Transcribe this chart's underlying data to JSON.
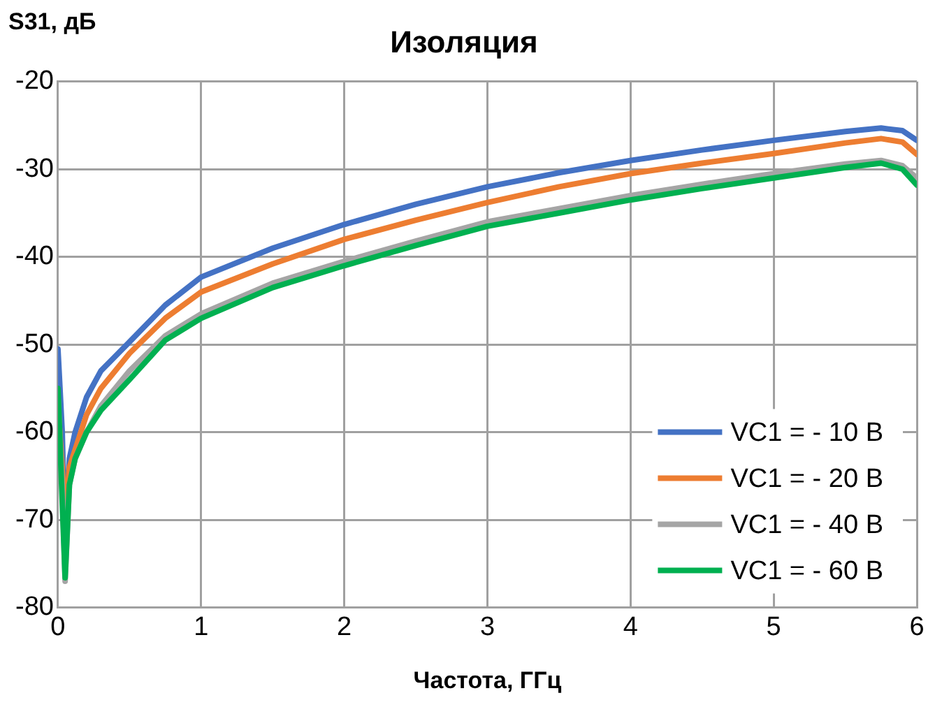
{
  "chart_data": {
    "type": "line",
    "title": "Изоляция",
    "xlabel": "Частота, ГГц",
    "ylabel": "S31, дБ",
    "x": [
      0,
      0.03,
      0.05,
      0.08,
      0.12,
      0.2,
      0.3,
      0.5,
      0.75,
      1,
      1.5,
      2,
      2.5,
      3,
      3.5,
      4,
      4.5,
      5,
      5.5,
      5.75,
      5.9,
      6
    ],
    "series": [
      {
        "name": "VC1 = - 10 В",
        "color": "#4472c4",
        "values": [
          -50.5,
          -60,
          -73,
          -63,
          -60,
          -56,
          -53,
          -49.7,
          -45.5,
          -42.3,
          -39,
          -36.3,
          -34,
          -32,
          -30.4,
          -29,
          -27.8,
          -26.7,
          -25.7,
          -25.3,
          -25.6,
          -26.7
        ]
      },
      {
        "name": "VC1 = - 20 В",
        "color": "#ed7d31",
        "values": [
          -57,
          -64,
          -70,
          -64,
          -62,
          -58,
          -55,
          -51,
          -47,
          -44,
          -40.8,
          -38,
          -35.8,
          -33.8,
          -32,
          -30.5,
          -29.3,
          -28.2,
          -27,
          -26.5,
          -26.9,
          -28.3
        ]
      },
      {
        "name": "VC1 = - 40 В",
        "color": "#a5a5a5",
        "values": [
          -56,
          -66,
          -77,
          -66,
          -63,
          -60,
          -57,
          -53,
          -49,
          -46.5,
          -43,
          -40.5,
          -38.2,
          -36,
          -34.5,
          -33,
          -31.7,
          -30.5,
          -29.4,
          -29,
          -29.6,
          -31
        ]
      },
      {
        "name": "VC1 = - 60 В",
        "color": "#00b050",
        "values": [
          -55,
          -68,
          -76.6,
          -66,
          -63,
          -60,
          -57.5,
          -54,
          -49.5,
          -47,
          -43.5,
          -41,
          -38.7,
          -36.5,
          -35,
          -33.5,
          -32.2,
          -31,
          -29.8,
          -29.3,
          -30,
          -31.8
        ]
      }
    ],
    "xlim": [
      0,
      6
    ],
    "xticks": [
      0,
      1,
      2,
      3,
      4,
      5,
      6
    ],
    "ylim": [
      -80,
      -20
    ],
    "yticks": [
      -80,
      -70,
      -60,
      -50,
      -40,
      -30,
      -20
    ],
    "grid": true,
    "legend": "bottom right",
    "marker": "none",
    "line_style": "solid"
  }
}
